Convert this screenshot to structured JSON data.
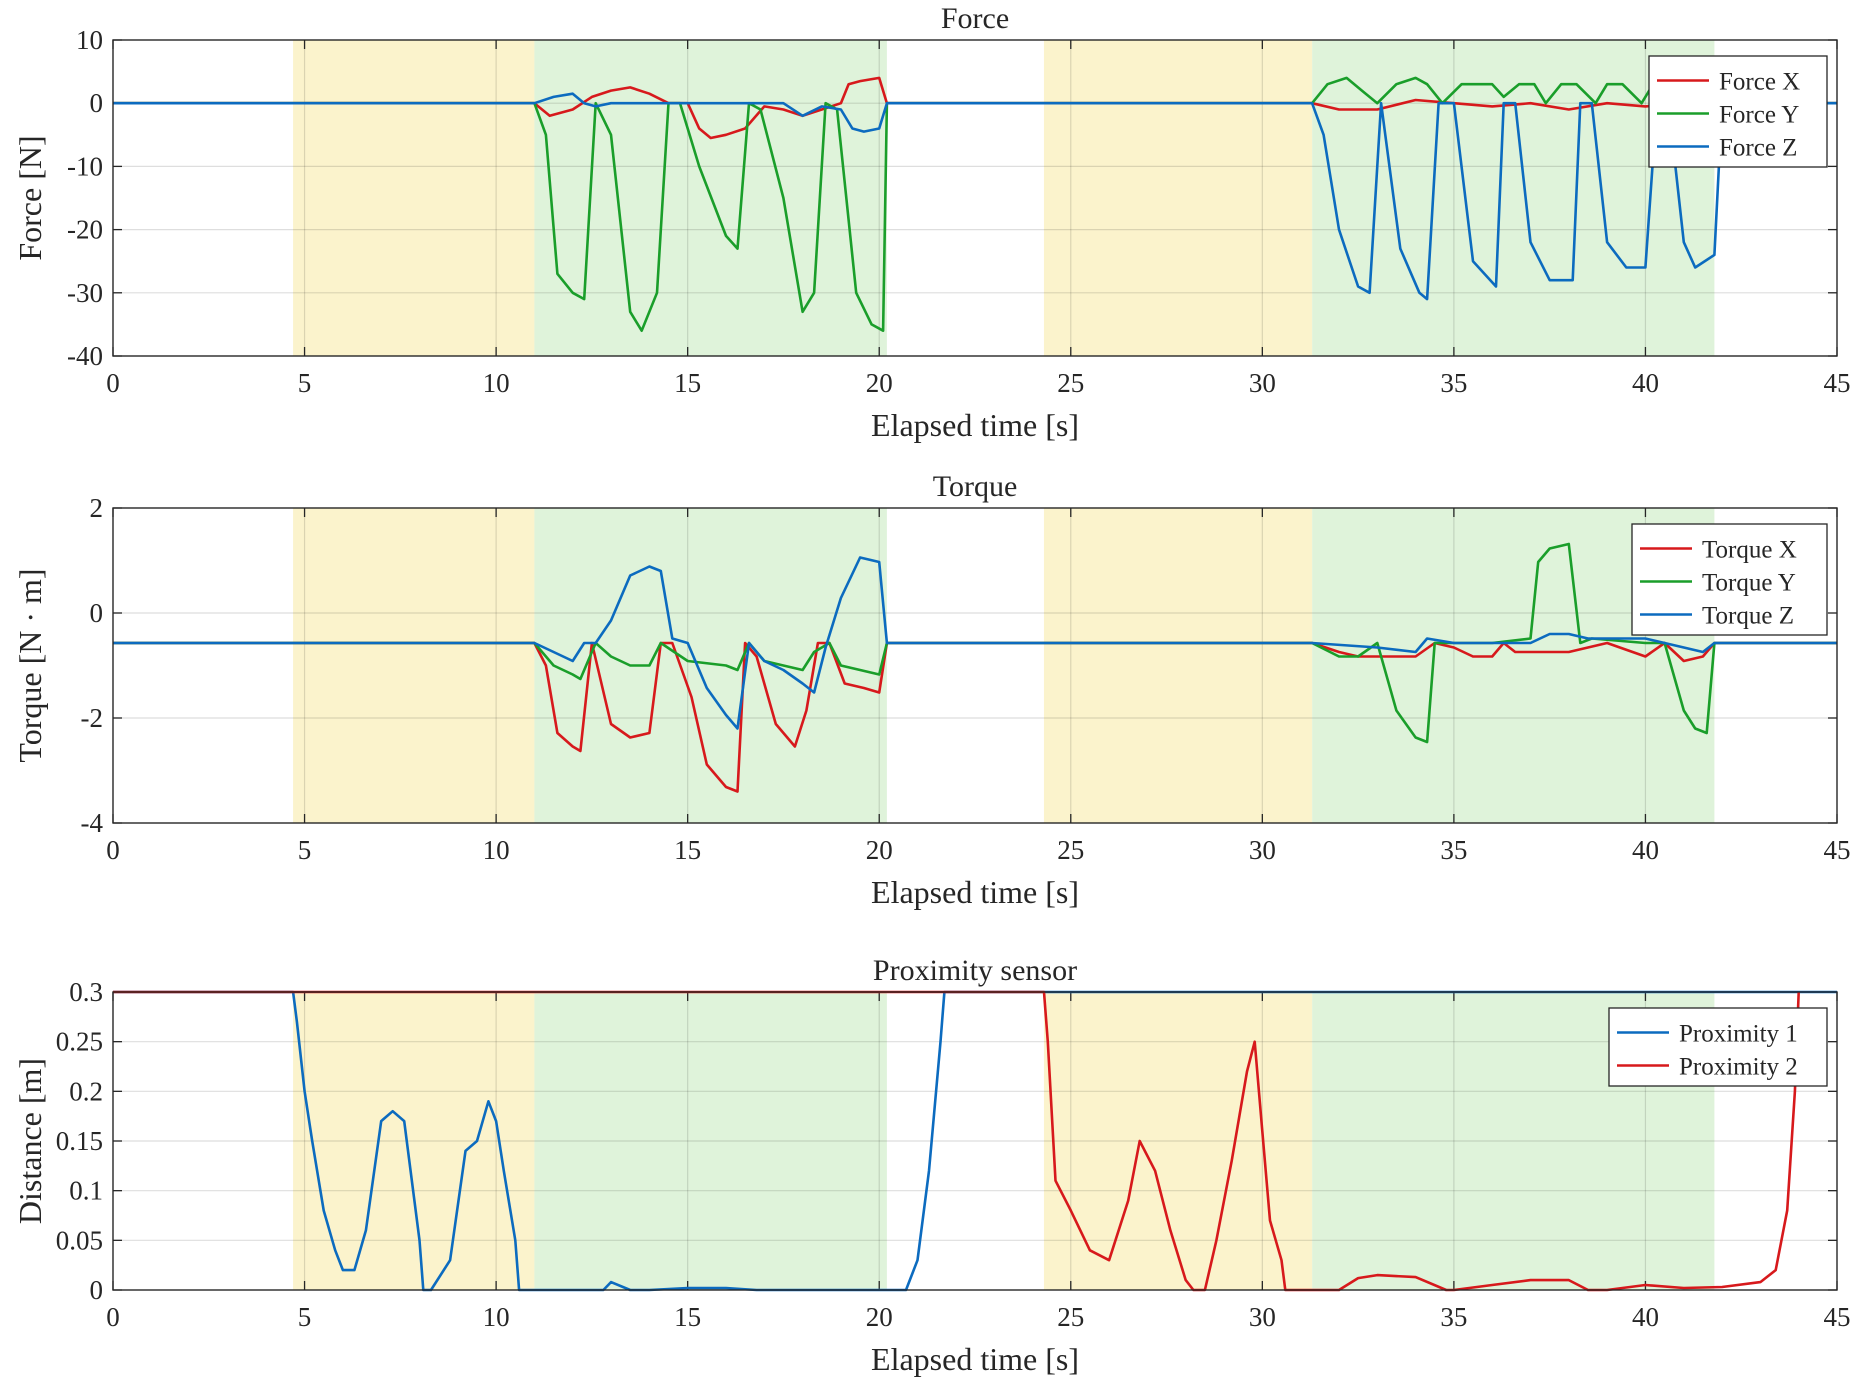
{
  "figure": {
    "colors": {
      "red": "#d7191c",
      "green": "#1a9e2a",
      "blue": "#0c6bbf",
      "yellow_shade": "#fbf3cc",
      "green_shade": "#dff3da"
    }
  },
  "chart_data": [
    {
      "type": "line",
      "title": "Force",
      "xlabel": "Elapsed time [s]",
      "ylabel": "Force [N]",
      "xlim": [
        0,
        45
      ],
      "ylim": [
        -40,
        10
      ],
      "xticks": [
        "0",
        "5",
        "10",
        "15",
        "20",
        "25",
        "30",
        "35",
        "40",
        "45"
      ],
      "yticks": [
        "10",
        "0",
        "-10",
        "-20",
        "-30",
        "-40"
      ],
      "grid": true,
      "legend_position": "top-right",
      "shaded_regions": [
        {
          "x": [
            4.7,
            11.0
          ],
          "color": "yellow"
        },
        {
          "x": [
            11.0,
            20.2
          ],
          "color": "green"
        },
        {
          "x": [
            24.3,
            31.3
          ],
          "color": "yellow"
        },
        {
          "x": [
            31.3,
            41.8
          ],
          "color": "green"
        }
      ],
      "series": [
        {
          "name": "Force X",
          "color": "red",
          "x": [
            0,
            11.0,
            11.4,
            12.0,
            12.5,
            13.0,
            13.5,
            14.0,
            14.5,
            15.0,
            15.3,
            15.6,
            16.0,
            16.5,
            17.0,
            17.5,
            18.0,
            18.5,
            19.0,
            19.2,
            19.5,
            20.0,
            20.2,
            20.4,
            31.0,
            31.3,
            32.0,
            33.0,
            34.0,
            35.0,
            36.0,
            37.0,
            38.0,
            39.0,
            40.0,
            41.0,
            41.8,
            45
          ],
          "y": [
            0,
            0,
            -2,
            -1,
            1,
            2,
            2.5,
            1.5,
            0,
            0,
            -4,
            -5.5,
            -5,
            -4,
            -0.5,
            -1,
            -2,
            -1,
            0,
            3,
            3.5,
            4,
            0,
            0,
            0,
            0,
            -1,
            -1,
            0.5,
            0,
            -0.5,
            0,
            -1,
            0,
            -0.5,
            0,
            0,
            0
          ]
        },
        {
          "name": "Force Y",
          "color": "green",
          "x": [
            0,
            11.0,
            11.3,
            11.6,
            12.0,
            12.3,
            12.6,
            13.0,
            13.5,
            13.8,
            14.2,
            14.5,
            14.8,
            15.3,
            16.0,
            16.3,
            16.6,
            16.9,
            17.5,
            18.0,
            18.3,
            18.6,
            18.9,
            19.4,
            19.8,
            20.1,
            20.2,
            31.0,
            31.3,
            31.7,
            32.2,
            32.6,
            33.0,
            33.5,
            34.0,
            34.3,
            34.7,
            35.2,
            35.6,
            36.0,
            36.3,
            36.7,
            37.1,
            37.4,
            37.8,
            38.2,
            38.7,
            39.0,
            39.4,
            39.9,
            40.2,
            40.6,
            41.0,
            41.8,
            45
          ],
          "y": [
            0,
            0,
            -5,
            -27,
            -30,
            -31,
            0,
            -5,
            -33,
            -36,
            -30,
            0,
            0,
            -10,
            -21,
            -23,
            0,
            -1,
            -15,
            -33,
            -30,
            0,
            -1,
            -30,
            -35,
            -36,
            0,
            0,
            0,
            3,
            4,
            2,
            0,
            3,
            4,
            3,
            0,
            3,
            3,
            3,
            1,
            3,
            3,
            0,
            3,
            3,
            0,
            3,
            3,
            0,
            3,
            3,
            3,
            0,
            0
          ]
        },
        {
          "name": "Force Z",
          "color": "blue",
          "x": [
            0,
            11.0,
            11.5,
            12.0,
            12.3,
            12.6,
            13.0,
            15.0,
            16.0,
            17.0,
            17.5,
            18.0,
            18.5,
            19.0,
            19.3,
            19.6,
            20.0,
            20.2,
            31.0,
            31.3,
            31.6,
            32.0,
            32.5,
            32.8,
            33.1,
            33.6,
            34.1,
            34.3,
            34.6,
            35.0,
            35.5,
            36.1,
            36.3,
            36.6,
            37.0,
            37.5,
            38.1,
            38.3,
            38.6,
            39.0,
            39.5,
            40.0,
            40.3,
            40.6,
            41.0,
            41.3,
            41.8,
            42.0,
            45
          ],
          "y": [
            0,
            0,
            1,
            1.5,
            0,
            -0.5,
            0,
            0,
            0,
            0,
            0,
            -2,
            -0.5,
            -1,
            -4,
            -4.5,
            -4,
            0,
            0,
            0,
            -5,
            -20,
            -29,
            -30,
            0,
            -23,
            -30,
            -31,
            0,
            0,
            -25,
            -29,
            0,
            0,
            -22,
            -28,
            -28,
            0,
            0,
            -22,
            -26,
            -26,
            0,
            0,
            -22,
            -26,
            -24,
            0,
            0
          ]
        }
      ]
    },
    {
      "type": "line",
      "title": "Torque",
      "xlabel": "Elapsed time [s]",
      "ylabel": "Torque  [N · m]",
      "xlim": [
        0,
        45
      ],
      "ylim": [
        -4,
        3
      ],
      "xticks": [
        "0",
        "5",
        "10",
        "15",
        "20",
        "25",
        "30",
        "35",
        "40",
        "45"
      ],
      "yticks": [
        "2",
        "0",
        "-2",
        "-4"
      ],
      "grid": true,
      "legend_position": "top-right",
      "shaded_regions": [
        {
          "x": [
            4.7,
            11.0
          ],
          "color": "yellow"
        },
        {
          "x": [
            11.0,
            20.2
          ],
          "color": "green"
        },
        {
          "x": [
            24.3,
            31.3
          ],
          "color": "yellow"
        },
        {
          "x": [
            31.3,
            41.8
          ],
          "color": "green"
        }
      ],
      "series": [
        {
          "name": "Torque X",
          "color": "red",
          "x": [
            0,
            11.0,
            11.3,
            11.6,
            12.0,
            12.2,
            12.5,
            13.0,
            13.5,
            14.0,
            14.3,
            14.6,
            15.1,
            15.5,
            16.0,
            16.3,
            16.5,
            16.8,
            17.3,
            17.8,
            18.1,
            18.4,
            18.7,
            19.1,
            19.6,
            20.0,
            20.2,
            31.0,
            31.3,
            32.0,
            32.5,
            33.0,
            34.0,
            34.5,
            35.0,
            35.5,
            36.0,
            36.3,
            36.6,
            37.0,
            38.0,
            39.0,
            40.0,
            40.5,
            41.0,
            41.5,
            41.8,
            45
          ],
          "y": [
            0,
            0,
            -0.5,
            -2.0,
            -2.3,
            -2.4,
            0,
            -1.8,
            -2.1,
            -2.0,
            0,
            0,
            -1.2,
            -2.7,
            -3.2,
            -3.3,
            0,
            -0.3,
            -1.8,
            -2.3,
            -1.5,
            0,
            0,
            -0.9,
            -1.0,
            -1.1,
            0,
            0,
            0,
            -0.2,
            -0.3,
            -0.3,
            -0.3,
            0,
            -0.1,
            -0.3,
            -0.3,
            0,
            -0.2,
            -0.2,
            -0.2,
            0,
            -0.3,
            0,
            -0.4,
            -0.3,
            0,
            0
          ]
        },
        {
          "name": "Torque Y",
          "color": "green",
          "x": [
            0,
            11.0,
            11.5,
            12.0,
            12.2,
            12.6,
            13.0,
            13.5,
            14.0,
            14.3,
            15.0,
            16.0,
            16.3,
            16.6,
            17.0,
            17.5,
            18.0,
            18.3,
            18.7,
            19.0,
            19.5,
            20.0,
            20.2,
            31.0,
            31.3,
            32.0,
            32.5,
            33.0,
            33.5,
            34.0,
            34.3,
            34.5,
            35.0,
            36.0,
            37.0,
            37.2,
            37.5,
            38.0,
            38.3,
            38.6,
            40.0,
            40.5,
            41.0,
            41.3,
            41.6,
            41.8,
            45
          ],
          "y": [
            0,
            0,
            -0.5,
            -0.7,
            -0.8,
            0,
            -0.3,
            -0.5,
            -0.5,
            0,
            -0.4,
            -0.5,
            -0.6,
            0,
            -0.4,
            -0.5,
            -0.6,
            -0.2,
            0,
            -0.5,
            -0.6,
            -0.7,
            0,
            0,
            0,
            -0.3,
            -0.3,
            0,
            -1.5,
            -2.1,
            -2.2,
            0,
            0,
            0,
            0.1,
            1.8,
            2.1,
            2.2,
            0,
            0.1,
            0,
            0,
            -1.5,
            -1.9,
            -2.0,
            0,
            0
          ]
        },
        {
          "name": "Torque Z",
          "color": "blue",
          "x": [
            0,
            11.0,
            11.5,
            12.0,
            12.3,
            12.6,
            13.0,
            13.5,
            14.0,
            14.3,
            14.6,
            15.0,
            15.5,
            16.0,
            16.3,
            16.6,
            17.0,
            17.5,
            18.0,
            18.3,
            18.6,
            19.0,
            19.5,
            20.0,
            20.2,
            31.0,
            31.3,
            33.0,
            34.0,
            34.3,
            35.0,
            36.0,
            37.0,
            37.5,
            38.0,
            38.5,
            40.0,
            41.0,
            41.5,
            41.8,
            45
          ],
          "y": [
            0,
            0,
            -0.2,
            -0.4,
            0,
            0,
            0.5,
            1.5,
            1.7,
            1.6,
            0.1,
            0,
            -1.0,
            -1.6,
            -1.9,
            0,
            -0.4,
            -0.6,
            -0.9,
            -1.1,
            -0.1,
            1.0,
            1.9,
            1.8,
            0,
            0,
            0,
            -0.1,
            -0.2,
            0.1,
            0,
            0,
            0,
            0.2,
            0.2,
            0.1,
            0.1,
            -0.1,
            -0.2,
            0,
            0
          ]
        }
      ]
    },
    {
      "type": "line",
      "title": "Proximity sensor",
      "xlabel": "Elapsed time [s]",
      "ylabel": "Distance [m]",
      "xlim": [
        0,
        45
      ],
      "ylim": [
        0,
        0.3
      ],
      "xticks": [
        "0",
        "5",
        "10",
        "15",
        "20",
        "25",
        "30",
        "35",
        "40",
        "45"
      ],
      "yticks": [
        "0.3",
        "0.25",
        "0.2",
        "0.15",
        "0.1",
        "0.05",
        "0"
      ],
      "grid": true,
      "legend_position": "top-right",
      "shaded_regions": [
        {
          "x": [
            4.7,
            11.0
          ],
          "color": "yellow"
        },
        {
          "x": [
            11.0,
            20.2
          ],
          "color": "green"
        },
        {
          "x": [
            24.3,
            31.3
          ],
          "color": "yellow"
        },
        {
          "x": [
            31.3,
            41.8
          ],
          "color": "green"
        }
      ],
      "series": [
        {
          "name": "Proximity 1",
          "color": "blue",
          "x": [
            0,
            4.7,
            4.8,
            5.0,
            5.2,
            5.5,
            5.8,
            6.0,
            6.3,
            6.6,
            7.0,
            7.3,
            7.6,
            8.0,
            8.1,
            8.3,
            8.8,
            9.2,
            9.5,
            9.8,
            10.0,
            10.2,
            10.5,
            10.6,
            12.8,
            13.0,
            13.5,
            14.0,
            15.0,
            16.0,
            16.8,
            20.2,
            20.7,
            21.0,
            21.3,
            21.6,
            21.7,
            45
          ],
          "y": [
            0.3,
            0.3,
            0.27,
            0.2,
            0.15,
            0.08,
            0.04,
            0.02,
            0.02,
            0.06,
            0.17,
            0.18,
            0.17,
            0.05,
            0.0,
            0.0,
            0.03,
            0.14,
            0.15,
            0.19,
            0.17,
            0.12,
            0.05,
            0.0,
            0.0,
            0.008,
            0.0,
            0.0,
            0.002,
            0.002,
            0.0,
            0.0,
            0.0,
            0.03,
            0.12,
            0.25,
            0.3,
            0.3
          ]
        },
        {
          "name": "Proximity 2",
          "color": "red",
          "x": [
            0,
            24.3,
            24.4,
            24.6,
            25.0,
            25.5,
            26.0,
            26.5,
            26.8,
            27.2,
            27.6,
            28.0,
            28.2,
            28.5,
            28.8,
            29.2,
            29.6,
            29.8,
            30.0,
            30.2,
            30.5,
            30.6,
            32.0,
            32.5,
            33.0,
            34.0,
            34.8,
            35.0,
            36.0,
            37.0,
            38.0,
            38.5,
            39.0,
            40.0,
            41.0,
            42.0,
            43.0,
            43.4,
            43.7,
            43.9,
            44.0
          ],
          "y": [
            0.3,
            0.3,
            0.25,
            0.11,
            0.08,
            0.04,
            0.03,
            0.09,
            0.15,
            0.12,
            0.06,
            0.01,
            0.0,
            0.0,
            0.05,
            0.13,
            0.22,
            0.25,
            0.16,
            0.07,
            0.03,
            0.0,
            0.0,
            0.012,
            0.015,
            0.013,
            0.0,
            0.0,
            0.005,
            0.01,
            0.01,
            0.0,
            0.0,
            0.005,
            0.002,
            0.003,
            0.008,
            0.02,
            0.08,
            0.2,
            0.3
          ]
        }
      ]
    }
  ]
}
